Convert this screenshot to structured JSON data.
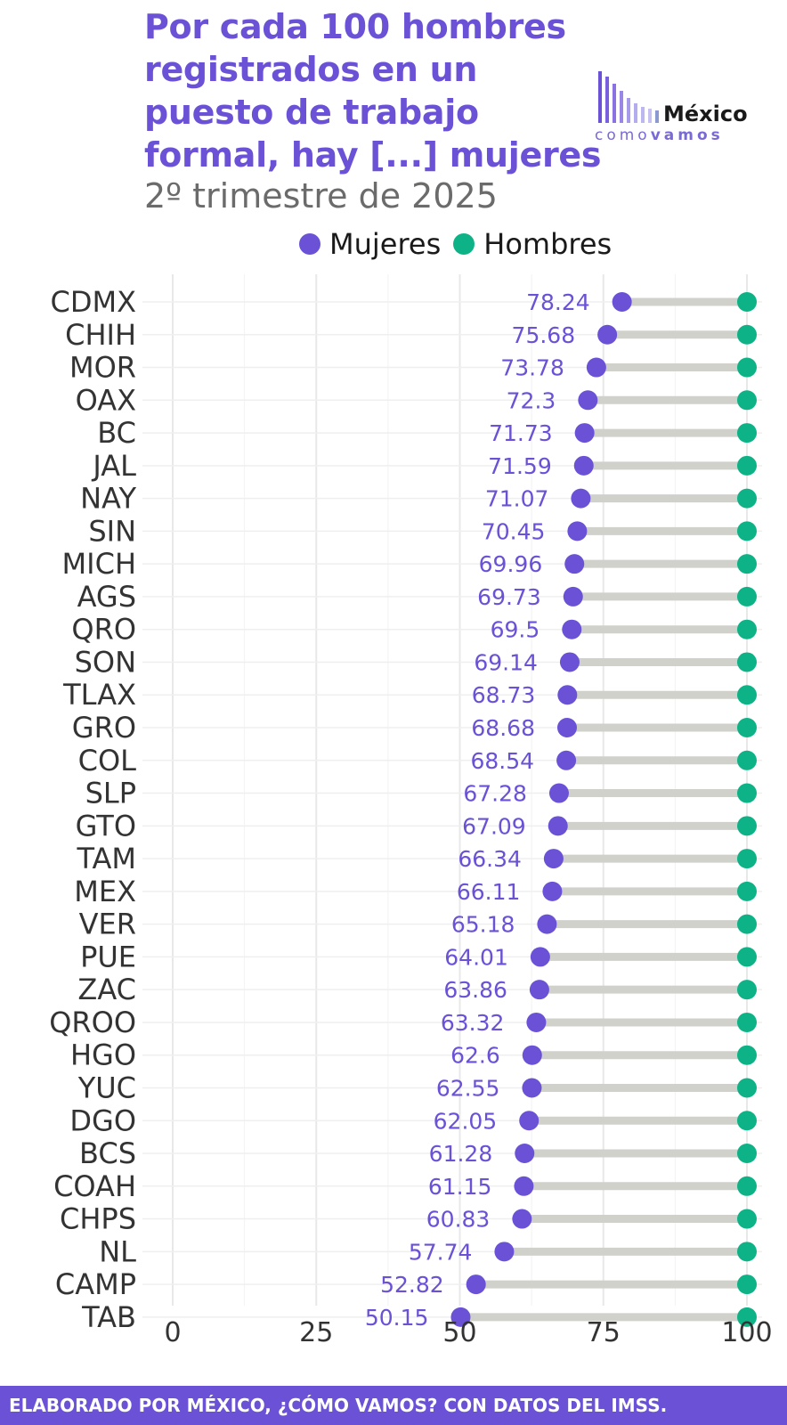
{
  "header": {
    "title": "Por cada 100 hombres registrados en un puesto de trabajo formal, hay [...] mujeres",
    "subtitle": "2º trimestre de 2025"
  },
  "logo": {
    "word": "México",
    "sub_plain": "como",
    "sub_bold": "vamos"
  },
  "footer": {
    "text": "ELABORADO POR MÉXICO, ¿CÓMO VAMOS? CON DATOS DEL IMSS."
  },
  "colors": {
    "mujeres": "#6a51d6",
    "hombres": "#0db386",
    "segment": "#d1d1cc",
    "grid": "#e8e8e8",
    "accent": "#6a51d6"
  },
  "chart_data": {
    "type": "dumbbell",
    "title": "Por cada 100 hombres registrados en un puesto de trabajo formal, hay [...] mujeres",
    "subtitle": "2º trimestre de 2025",
    "legend": {
      "position": "top",
      "entries": [
        "Mujeres",
        "Hombres"
      ]
    },
    "categories": [
      "CDMX",
      "CHIH",
      "MOR",
      "OAX",
      "BC",
      "JAL",
      "NAY",
      "SIN",
      "MICH",
      "AGS",
      "QRO",
      "SON",
      "TLAX",
      "GRO",
      "COL",
      "SLP",
      "GTO",
      "TAM",
      "MEX",
      "VER",
      "PUE",
      "ZAC",
      "QROO",
      "HGO",
      "YUC",
      "DGO",
      "BCS",
      "COAH",
      "CHPS",
      "NL",
      "CAMP",
      "TAB"
    ],
    "series": [
      {
        "name": "Mujeres",
        "values": [
          78.24,
          75.68,
          73.78,
          72.3,
          71.73,
          71.59,
          71.07,
          70.45,
          69.96,
          69.73,
          69.5,
          69.14,
          68.73,
          68.68,
          68.54,
          67.28,
          67.09,
          66.34,
          66.11,
          65.18,
          64.01,
          63.86,
          63.32,
          62.6,
          62.55,
          62.05,
          61.28,
          61.15,
          60.83,
          57.74,
          52.82,
          50.15
        ]
      },
      {
        "name": "Hombres",
        "values": [
          100,
          100,
          100,
          100,
          100,
          100,
          100,
          100,
          100,
          100,
          100,
          100,
          100,
          100,
          100,
          100,
          100,
          100,
          100,
          100,
          100,
          100,
          100,
          100,
          100,
          100,
          100,
          100,
          100,
          100,
          100,
          100
        ]
      }
    ],
    "data_labels": [
      "78.24",
      "75.68",
      "73.78",
      "72.3",
      "71.73",
      "71.59",
      "71.07",
      "70.45",
      "69.96",
      "69.73",
      "69.5",
      "69.14",
      "68.73",
      "68.68",
      "68.54",
      "67.28",
      "67.09",
      "66.34",
      "66.11",
      "65.18",
      "64.01",
      "63.86",
      "63.32",
      "62.6",
      "62.55",
      "62.05",
      "61.28",
      "61.15",
      "60.83",
      "57.74",
      "52.82",
      "50.15"
    ],
    "xlim": [
      0,
      100
    ],
    "xticks": [
      0,
      25,
      50,
      75,
      100
    ],
    "xtick_labels": [
      "0",
      "25",
      "50",
      "75",
      "100"
    ],
    "grid": true
  }
}
